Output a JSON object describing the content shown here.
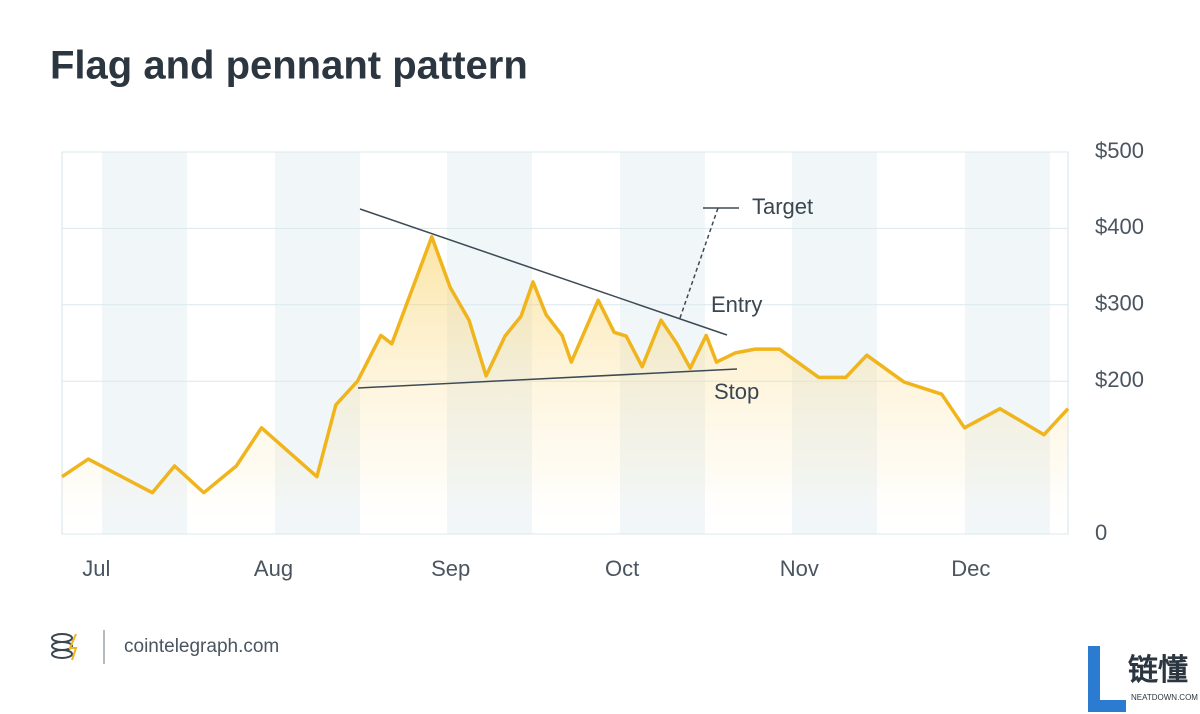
{
  "chart_data": {
    "type": "line",
    "title": "Flag and pennant pattern",
    "x": [
      -6,
      -1.4,
      9.8,
      13.7,
      18.8,
      24.5,
      28.9,
      38.6,
      41.9,
      45.7,
      49.8,
      51.7,
      58.7,
      61.9,
      65.2,
      68.2,
      71.5,
      74.3,
      76.4,
      78.7,
      81.5,
      83.1,
      87.8,
      90.6,
      92.7,
      95.5,
      98.8,
      101.6,
      103.9,
      106.7,
      108.5,
      111.8,
      115.3,
      119.5,
      126.4,
      131.1,
      134.8,
      141.3,
      147.9,
      151.9,
      158.1,
      165.8,
      170
    ],
    "values": [
      75,
      98,
      54,
      89,
      54,
      89,
      139,
      75,
      169,
      200,
      260,
      249,
      389,
      323,
      280,
      207,
      259,
      285,
      330,
      287,
      260,
      225,
      306,
      264,
      259,
      219,
      280,
      249,
      217,
      260,
      225,
      237,
      242,
      242,
      205,
      205,
      234,
      199,
      183,
      139,
      164,
      130,
      164
    ],
    "color": "#f0b41c",
    "xlim": [
      -6,
      170
    ],
    "xticks": [
      {
        "value": 0,
        "label": "Jul"
      },
      {
        "value": 31,
        "label": "Aug"
      },
      {
        "value": 62,
        "label": "Sep"
      },
      {
        "value": 92,
        "label": "Oct"
      },
      {
        "value": 123,
        "label": "Nov"
      },
      {
        "value": 153,
        "label": "Dec"
      }
    ],
    "ylim": [
      0,
      500
    ],
    "yticks": [
      0,
      {
        "value": 200,
        "label": "$200"
      },
      {
        "value": 300,
        "label": "$300"
      },
      {
        "value": 400,
        "label": "$400"
      },
      {
        "value": 500,
        "label": "$500"
      }
    ],
    "grid": true,
    "annotations": [
      "Target",
      "Entry",
      "Stop"
    ]
  },
  "footer": {
    "source": "cointelegraph.com",
    "watermark": "链懂",
    "watermark_sub": "NEATDOWN.COM"
  }
}
